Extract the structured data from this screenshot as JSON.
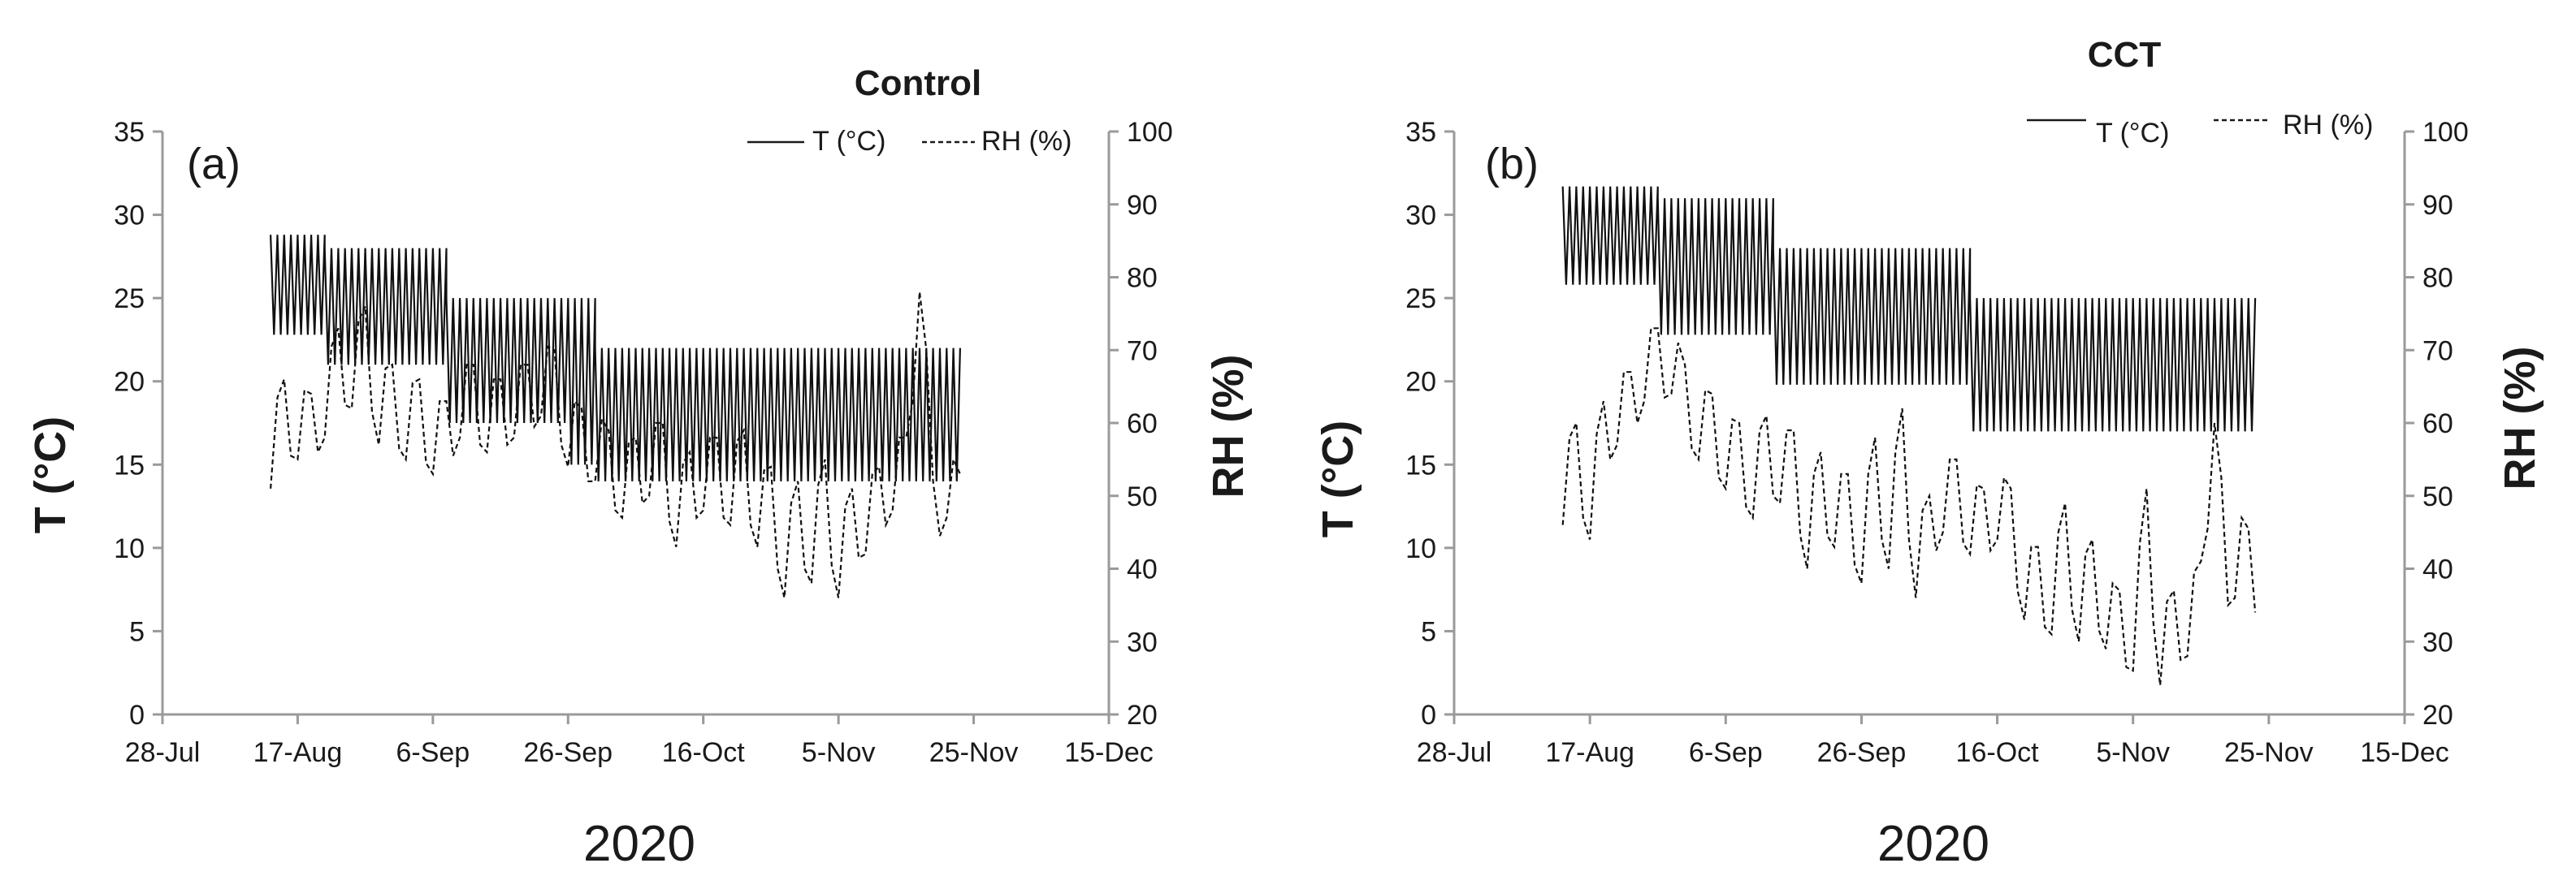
{
  "chart_data": [
    {
      "type": "line",
      "panel_label": "(a)",
      "title": "Control",
      "xlabel": "2020",
      "ylabel_left": "T  (°C)",
      "ylabel_right": "RH  (%)",
      "x_ticks": [
        "28-Jul",
        "17-Aug",
        "6-Sep",
        "26-Sep",
        "16-Oct",
        "5-Nov",
        "25-Nov",
        "15-Dec"
      ],
      "x_range_days": [
        0,
        140
      ],
      "y_left_range": [
        0,
        35
      ],
      "y_left_ticks": [
        "0",
        "5",
        "10",
        "15",
        "20",
        "25",
        "30",
        "35"
      ],
      "y_right_range": [
        20,
        100
      ],
      "y_right_ticks": [
        "20",
        "30",
        "40",
        "50",
        "60",
        "70",
        "80",
        "90",
        "100"
      ],
      "legend": [
        "T  (°C)",
        "RH  (%)"
      ],
      "series": [
        {
          "name": "T  (°C)",
          "axis": "left",
          "style": "solid",
          "segments": [
            {
              "start_day": 16,
              "end_day": 24,
              "low": 22.8,
              "high": 28.8
            },
            {
              "start_day": 24,
              "end_day": 42,
              "low": 21.0,
              "high": 28.0
            },
            {
              "start_day": 42,
              "end_day": 60,
              "low": 17.5,
              "high": 25.0
            },
            {
              "start_day": 60,
              "end_day": 64,
              "low": 15.0,
              "high": 25.0
            },
            {
              "start_day": 64,
              "end_day": 118,
              "low": 14.0,
              "high": 22.0
            }
          ]
        },
        {
          "name": "RH  (%)",
          "axis": "right",
          "style": "dashed",
          "points": [
            [
              16,
              51
            ],
            [
              18,
              66
            ],
            [
              20,
              55
            ],
            [
              22,
              64
            ],
            [
              24,
              58
            ],
            [
              26,
              73
            ],
            [
              28,
              62
            ],
            [
              30,
              76
            ],
            [
              32,
              57
            ],
            [
              34,
              68
            ],
            [
              36,
              55
            ],
            [
              38,
              66
            ],
            [
              40,
              53
            ],
            [
              42,
              63
            ],
            [
              44,
              58
            ],
            [
              46,
              68
            ],
            [
              48,
              56
            ],
            [
              50,
              66
            ],
            [
              52,
              58
            ],
            [
              54,
              68
            ],
            [
              56,
              61
            ],
            [
              58,
              70
            ],
            [
              60,
              54
            ],
            [
              62,
              62
            ],
            [
              64,
              52
            ],
            [
              66,
              59
            ],
            [
              68,
              47
            ],
            [
              70,
              58
            ],
            [
              72,
              50
            ],
            [
              74,
              60
            ],
            [
              76,
              43
            ],
            [
              78,
              56
            ],
            [
              80,
              48
            ],
            [
              82,
              58
            ],
            [
              84,
              46
            ],
            [
              86,
              59
            ],
            [
              88,
              43
            ],
            [
              90,
              54
            ],
            [
              92,
              36
            ],
            [
              94,
              52
            ],
            [
              96,
              38
            ],
            [
              98,
              55
            ],
            [
              100,
              36
            ],
            [
              102,
              51
            ],
            [
              104,
              42
            ],
            [
              106,
              54
            ],
            [
              108,
              48
            ],
            [
              110,
              58
            ],
            [
              112,
              78
            ],
            [
              114,
              52
            ],
            [
              116,
              47
            ],
            [
              118,
              53
            ]
          ]
        }
      ]
    },
    {
      "type": "line",
      "panel_label": "(b)",
      "title": "CCT",
      "xlabel": "2020",
      "ylabel_left": "T  (°C)",
      "ylabel_right": "RH  (%)",
      "x_ticks": [
        "28-Jul",
        "17-Aug",
        "6-Sep",
        "26-Sep",
        "16-Oct",
        "5-Nov",
        "25-Nov",
        "15-Dec"
      ],
      "x_range_days": [
        0,
        140
      ],
      "y_left_range": [
        0,
        35
      ],
      "y_left_ticks": [
        "0",
        "5",
        "10",
        "15",
        "20",
        "25",
        "30",
        "35"
      ],
      "y_right_range": [
        20,
        100
      ],
      "y_right_ticks": [
        "20",
        "30",
        "40",
        "50",
        "60",
        "70",
        "80",
        "90",
        "100"
      ],
      "legend": [
        "T  (°C)",
        "RH  (%)"
      ],
      "series": [
        {
          "name": "T  (°C)",
          "axis": "left",
          "style": "solid",
          "segments": [
            {
              "start_day": 16,
              "end_day": 30,
              "low": 25.8,
              "high": 31.7
            },
            {
              "start_day": 30,
              "end_day": 47,
              "low": 22.8,
              "high": 31.0
            },
            {
              "start_day": 47,
              "end_day": 76,
              "low": 19.8,
              "high": 28.0
            },
            {
              "start_day": 76,
              "end_day": 118,
              "low": 17.0,
              "high": 25.0
            }
          ]
        },
        {
          "name": "RH  (%)",
          "axis": "right",
          "style": "dashed",
          "points": [
            [
              16,
              46
            ],
            [
              18,
              60
            ],
            [
              20,
              44
            ],
            [
              22,
              63
            ],
            [
              24,
              57
            ],
            [
              26,
              67
            ],
            [
              28,
              63
            ],
            [
              30,
              73
            ],
            [
              32,
              64
            ],
            [
              34,
              68
            ],
            [
              36,
              55
            ],
            [
              38,
              64
            ],
            [
              40,
              51
            ],
            [
              42,
              60
            ],
            [
              44,
              47
            ],
            [
              46,
              61
            ],
            [
              48,
              49
            ],
            [
              50,
              59
            ],
            [
              52,
              40
            ],
            [
              54,
              56
            ],
            [
              56,
              43
            ],
            [
              58,
              53
            ],
            [
              60,
              38
            ],
            [
              62,
              58
            ],
            [
              64,
              40
            ],
            [
              66,
              62
            ],
            [
              68,
              36
            ],
            [
              70,
              50
            ],
            [
              72,
              45
            ],
            [
              74,
              55
            ],
            [
              76,
              42
            ],
            [
              78,
              51
            ],
            [
              80,
              44
            ],
            [
              82,
              51
            ],
            [
              84,
              33
            ],
            [
              86,
              43
            ],
            [
              88,
              31
            ],
            [
              90,
              49
            ],
            [
              92,
              30
            ],
            [
              94,
              44
            ],
            [
              96,
              29
            ],
            [
              98,
              37
            ],
            [
              100,
              26
            ],
            [
              102,
              51
            ],
            [
              104,
              24
            ],
            [
              106,
              37
            ],
            [
              108,
              28
            ],
            [
              110,
              41
            ],
            [
              112,
              60
            ],
            [
              114,
              35
            ],
            [
              116,
              47
            ],
            [
              118,
              34
            ]
          ]
        }
      ]
    }
  ]
}
